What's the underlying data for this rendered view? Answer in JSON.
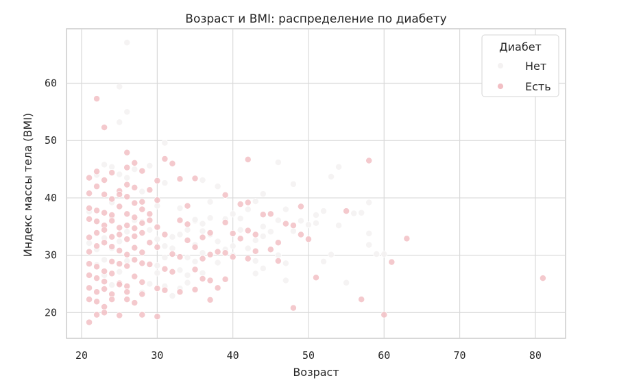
{
  "chart_data": {
    "type": "scatter",
    "title": "Возраст и BMI: распределение по диабету",
    "xlabel": "Возраст",
    "ylabel": "Индекс массы тела (BMI)",
    "xlim": [
      18,
      84
    ],
    "ylim": [
      15.5,
      69.5
    ],
    "xticks": [
      "20",
      "30",
      "40",
      "50",
      "60",
      "70",
      "80"
    ],
    "yticks": [
      "20",
      "30",
      "40",
      "50",
      "60"
    ],
    "grid": true,
    "legend": {
      "title": "Диабет",
      "placement": "top-right"
    },
    "series": [
      {
        "name": "Нет",
        "color": "#f4f2f2",
        "points": [
          [
            26,
            67.1
          ],
          [
            25,
            59.4
          ],
          [
            26,
            55.0
          ],
          [
            25,
            53.2
          ],
          [
            31,
            49.6
          ],
          [
            29,
            45.6
          ],
          [
            23,
            45.8
          ],
          [
            24,
            45.4
          ],
          [
            22,
            44.0
          ],
          [
            25,
            44.1
          ],
          [
            36,
            43.1
          ],
          [
            38,
            42.0
          ],
          [
            48,
            42.4
          ],
          [
            44,
            40.7
          ],
          [
            46,
            46.2
          ],
          [
            54,
            45.4
          ],
          [
            53,
            43.7
          ],
          [
            58,
            39.2
          ],
          [
            52,
            37.7
          ],
          [
            51,
            37.0
          ],
          [
            56,
            37.3
          ],
          [
            57,
            37.4
          ],
          [
            54,
            35.2
          ],
          [
            58,
            33.8
          ],
          [
            58,
            31.8
          ],
          [
            59,
            30.2
          ],
          [
            60,
            30.2
          ],
          [
            52,
            28.9
          ],
          [
            53,
            30.1
          ],
          [
            55,
            25.2
          ],
          [
            47,
            25.6
          ],
          [
            44,
            27.7
          ],
          [
            43,
            26.8
          ],
          [
            46,
            30.0
          ],
          [
            45,
            31.0
          ],
          [
            43,
            32.6
          ],
          [
            44,
            35.0
          ],
          [
            42,
            38.0
          ],
          [
            40,
            37.2
          ],
          [
            39,
            36.3
          ],
          [
            37,
            36.5
          ],
          [
            36,
            35.5
          ],
          [
            35,
            36.0
          ],
          [
            34,
            34.4
          ],
          [
            33,
            33.6
          ],
          [
            32,
            33.2
          ],
          [
            31,
            31.6
          ],
          [
            30,
            32.8
          ],
          [
            29,
            34.4
          ],
          [
            28,
            35.8
          ],
          [
            27,
            36.1
          ],
          [
            26,
            34.1
          ],
          [
            25,
            32.4
          ],
          [
            24,
            31.2
          ],
          [
            23,
            33.0
          ],
          [
            22,
            35.9
          ],
          [
            21,
            37.6
          ],
          [
            30,
            28.2
          ],
          [
            31,
            29.6
          ],
          [
            32,
            31.2
          ],
          [
            33,
            27.4
          ],
          [
            34,
            29.6
          ],
          [
            35,
            31.8
          ],
          [
            36,
            30.4
          ],
          [
            37,
            33.6
          ],
          [
            38,
            32.4
          ],
          [
            39,
            31.0
          ],
          [
            40,
            30.0
          ],
          [
            41,
            34.4
          ],
          [
            42,
            31.2
          ],
          [
            43,
            29.0
          ],
          [
            44,
            33.3
          ],
          [
            45,
            34.1
          ],
          [
            46,
            36.1
          ],
          [
            47,
            38.0
          ],
          [
            48,
            34.2
          ],
          [
            49,
            36.0
          ],
          [
            50,
            35.3
          ],
          [
            51,
            35.6
          ],
          [
            40,
            31.6
          ],
          [
            38,
            28.7
          ],
          [
            36,
            26.9
          ],
          [
            34,
            25.2
          ],
          [
            37,
            39.3
          ],
          [
            33,
            38.2
          ],
          [
            30,
            38.6
          ],
          [
            28,
            41.1
          ],
          [
            26,
            43.5
          ],
          [
            24,
            39.2
          ],
          [
            27,
            45.0
          ],
          [
            31,
            42.6
          ],
          [
            35,
            36.2
          ],
          [
            41,
            36.4
          ],
          [
            43,
            39.4
          ],
          [
            47,
            28.6
          ],
          [
            22,
            28.3
          ],
          [
            23,
            26.5
          ],
          [
            24,
            24.8
          ],
          [
            25,
            27.1
          ],
          [
            26,
            29.0
          ],
          [
            27,
            31.2
          ],
          [
            28,
            23.5
          ],
          [
            29,
            25.0
          ],
          [
            30,
            26.9
          ],
          [
            31,
            24.6
          ],
          [
            32,
            22.9
          ],
          [
            33,
            24.2
          ],
          [
            34,
            26.5
          ],
          [
            35,
            28.9
          ],
          [
            36,
            34.2
          ],
          [
            21,
            32.1
          ],
          [
            22,
            31.0
          ],
          [
            23,
            29.2
          ],
          [
            24,
            36.6
          ],
          [
            25,
            38.4
          ]
        ]
      },
      {
        "name": "Есть",
        "color": "#f2bfc4",
        "points": [
          [
            22,
            57.3
          ],
          [
            23,
            52.3
          ],
          [
            26,
            47.9
          ],
          [
            27,
            46.1
          ],
          [
            31,
            46.8
          ],
          [
            32,
            46.0
          ],
          [
            42,
            46.7
          ],
          [
            58,
            46.5
          ],
          [
            21,
            43.5
          ],
          [
            22,
            44.6
          ],
          [
            24,
            44.4
          ],
          [
            26,
            45.3
          ],
          [
            28,
            44.7
          ],
          [
            30,
            43.0
          ],
          [
            33,
            43.3
          ],
          [
            35,
            43.4
          ],
          [
            22,
            42.0
          ],
          [
            23,
            43.1
          ],
          [
            25,
            41.2
          ],
          [
            26,
            42.3
          ],
          [
            27,
            41.8
          ],
          [
            29,
            41.4
          ],
          [
            21,
            40.8
          ],
          [
            23,
            40.6
          ],
          [
            24,
            39.8
          ],
          [
            25,
            40.6
          ],
          [
            26,
            40.2
          ],
          [
            27,
            39.1
          ],
          [
            28,
            39.3
          ],
          [
            30,
            39.6
          ],
          [
            34,
            38.6
          ],
          [
            39,
            40.5
          ],
          [
            41,
            38.9
          ],
          [
            42,
            39.2
          ],
          [
            45,
            37.2
          ],
          [
            49,
            38.5
          ],
          [
            55,
            37.7
          ],
          [
            21,
            38.2
          ],
          [
            22,
            37.8
          ],
          [
            23,
            37.4
          ],
          [
            24,
            37.0
          ],
          [
            25,
            38.5
          ],
          [
            26,
            37.2
          ],
          [
            27,
            36.6
          ],
          [
            28,
            38.0
          ],
          [
            29,
            37.2
          ],
          [
            21,
            36.3
          ],
          [
            22,
            35.9
          ],
          [
            23,
            35.2
          ],
          [
            24,
            36.0
          ],
          [
            25,
            34.8
          ],
          [
            26,
            35.2
          ],
          [
            27,
            34.7
          ],
          [
            28,
            35.6
          ],
          [
            29,
            36.1
          ],
          [
            21,
            33.1
          ],
          [
            22,
            33.9
          ],
          [
            23,
            34.4
          ],
          [
            24,
            33.2
          ],
          [
            25,
            33.6
          ],
          [
            26,
            32.8
          ],
          [
            27,
            33.3
          ],
          [
            28,
            33.9
          ],
          [
            30,
            34.9
          ],
          [
            31,
            33.6
          ],
          [
            33,
            36.1
          ],
          [
            34,
            35.4
          ],
          [
            36,
            33.1
          ],
          [
            37,
            33.9
          ],
          [
            39,
            35.7
          ],
          [
            40,
            33.8
          ],
          [
            42,
            34.3
          ],
          [
            43,
            33.6
          ],
          [
            44,
            37.1
          ],
          [
            47,
            35.5
          ],
          [
            48,
            35.2
          ],
          [
            50,
            32.8
          ],
          [
            21,
            30.6
          ],
          [
            22,
            31.6
          ],
          [
            23,
            32.2
          ],
          [
            24,
            31.5
          ],
          [
            25,
            30.8
          ],
          [
            26,
            30.1
          ],
          [
            27,
            31.3
          ],
          [
            28,
            30.5
          ],
          [
            29,
            32.2
          ],
          [
            30,
            31.4
          ],
          [
            32,
            30.2
          ],
          [
            33,
            29.7
          ],
          [
            34,
            32.6
          ],
          [
            35,
            31.4
          ],
          [
            36,
            29.4
          ],
          [
            37,
            30.1
          ],
          [
            38,
            30.6
          ],
          [
            39,
            30.4
          ],
          [
            40,
            29.7
          ],
          [
            41,
            32.9
          ],
          [
            43,
            30.7
          ],
          [
            45,
            31.0
          ],
          [
            46,
            32.2
          ],
          [
            49,
            33.6
          ],
          [
            63,
            32.9
          ],
          [
            21,
            28.5
          ],
          [
            22,
            28.0
          ],
          [
            23,
            27.2
          ],
          [
            24,
            28.9
          ],
          [
            25,
            28.5
          ],
          [
            26,
            28.1
          ],
          [
            27,
            29.2
          ],
          [
            28,
            28.6
          ],
          [
            29,
            28.4
          ],
          [
            31,
            27.6
          ],
          [
            32,
            27.1
          ],
          [
            35,
            27.5
          ],
          [
            36,
            25.9
          ],
          [
            37,
            25.6
          ],
          [
            39,
            25.8
          ],
          [
            42,
            29.4
          ],
          [
            46,
            29.0
          ],
          [
            61,
            28.8
          ],
          [
            21,
            26.5
          ],
          [
            22,
            26.0
          ],
          [
            23,
            25.4
          ],
          [
            24,
            26.8
          ],
          [
            25,
            25.1
          ],
          [
            26,
            24.6
          ],
          [
            27,
            26.3
          ],
          [
            28,
            25.3
          ],
          [
            30,
            24.2
          ],
          [
            21,
            24.3
          ],
          [
            22,
            23.6
          ],
          [
            23,
            24.1
          ],
          [
            24,
            23.2
          ],
          [
            25,
            24.9
          ],
          [
            26,
            23.6
          ],
          [
            28,
            23.2
          ],
          [
            31,
            23.9
          ],
          [
            33,
            23.6
          ],
          [
            35,
            24.0
          ],
          [
            38,
            24.3
          ],
          [
            21,
            22.3
          ],
          [
            22,
            21.9
          ],
          [
            23,
            21.0
          ],
          [
            24,
            22.3
          ],
          [
            26,
            22.3
          ],
          [
            27,
            21.7
          ],
          [
            37,
            22.2
          ],
          [
            51,
            26.1
          ],
          [
            57,
            22.3
          ],
          [
            81,
            26.0
          ],
          [
            48,
            20.8
          ],
          [
            21,
            18.3
          ],
          [
            22,
            19.6
          ],
          [
            23,
            20.0
          ],
          [
            25,
            19.5
          ],
          [
            28,
            19.6
          ],
          [
            30,
            19.3
          ],
          [
            60,
            19.6
          ]
        ]
      }
    ]
  }
}
